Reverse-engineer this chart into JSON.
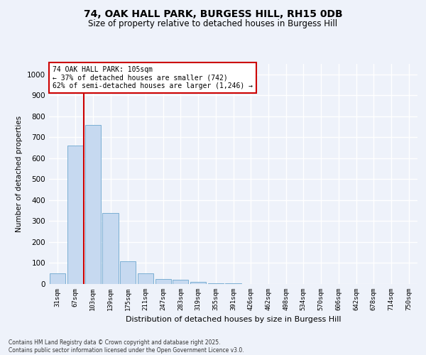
{
  "title1": "74, OAK HALL PARK, BURGESS HILL, RH15 0DB",
  "title2": "Size of property relative to detached houses in Burgess Hill",
  "xlabel": "Distribution of detached houses by size in Burgess Hill",
  "ylabel": "Number of detached properties",
  "categories": [
    "31sqm",
    "67sqm",
    "103sqm",
    "139sqm",
    "175sqm",
    "211sqm",
    "247sqm",
    "283sqm",
    "319sqm",
    "355sqm",
    "391sqm",
    "426sqm",
    "462sqm",
    "498sqm",
    "534sqm",
    "570sqm",
    "606sqm",
    "642sqm",
    "678sqm",
    "714sqm",
    "750sqm"
  ],
  "values": [
    50,
    660,
    760,
    340,
    110,
    50,
    25,
    20,
    10,
    5,
    2,
    1,
    0,
    0,
    0,
    0,
    0,
    0,
    0,
    0,
    0
  ],
  "bar_color": "#c6d9f0",
  "bar_edge_color": "#7bafd4",
  "vline_x": 1.5,
  "vline_color": "#cc0000",
  "annotation_text": "74 OAK HALL PARK: 105sqm\n← 37% of detached houses are smaller (742)\n62% of semi-detached houses are larger (1,246) →",
  "annotation_box_color": "#ffffff",
  "annotation_box_edge": "#cc0000",
  "ylim": [
    0,
    1050
  ],
  "yticks": [
    0,
    100,
    200,
    300,
    400,
    500,
    600,
    700,
    800,
    900,
    1000
  ],
  "footer1": "Contains HM Land Registry data © Crown copyright and database right 2025.",
  "footer2": "Contains public sector information licensed under the Open Government Licence v3.0.",
  "bg_color": "#eef2fa",
  "grid_color": "#ffffff",
  "title1_fontsize": 10,
  "title2_fontsize": 8.5
}
